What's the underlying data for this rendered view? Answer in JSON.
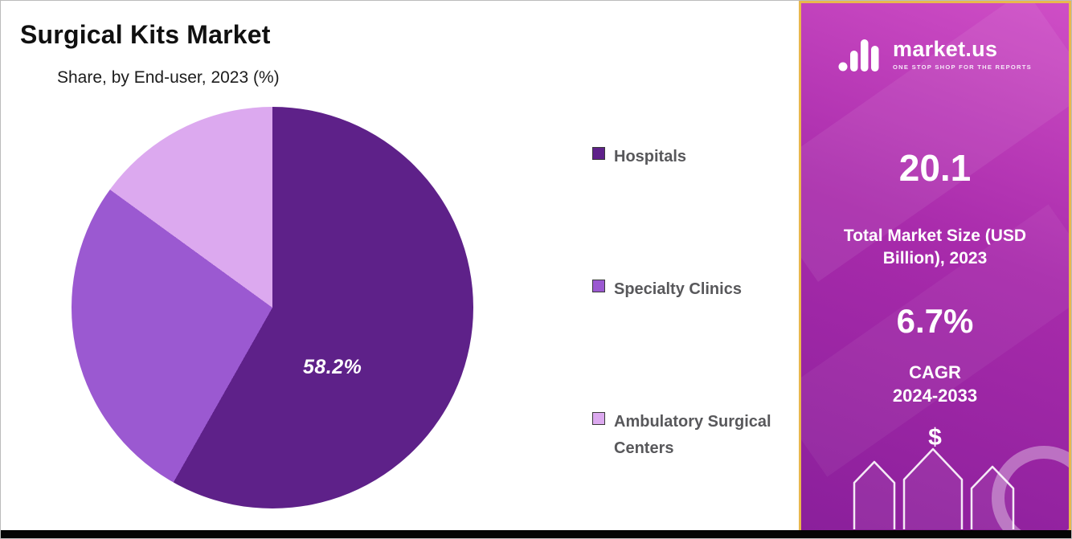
{
  "chart_data": {
    "type": "pie",
    "title": "Surgical Kits Market",
    "subtitle": "Share, by End-user, 2023 (%)",
    "data_label": "58.2%",
    "legend_position": "right",
    "direction": "clockwise",
    "start_angle_deg": 0,
    "slices": [
      {
        "label": "Hospitals",
        "value": 58.2,
        "color": "#5E2189"
      },
      {
        "label": "Specialty Clinics",
        "value": 26.8,
        "color": "#9B59D1"
      },
      {
        "label": "Ambulatory Surgical Centers",
        "value": 15.0,
        "color": "#DCA9EF"
      }
    ]
  },
  "sidebar": {
    "logo_text": "market.us",
    "logo_tagline": "ONE STOP SHOP FOR THE REPORTS",
    "market_size_value": "20.1",
    "market_size_label": "Total Market Size (USD Billion), 2023",
    "cagr_value": "6.7%",
    "cagr_label": "CAGR",
    "cagr_period": "2024-2033",
    "dollar_sign": "$",
    "colors": {
      "gradient_top": "#CF4EC6",
      "gradient_mid": "#A82BAB",
      "gradient_bottom": "#8A1F9B",
      "border": "#E9B84D"
    }
  }
}
